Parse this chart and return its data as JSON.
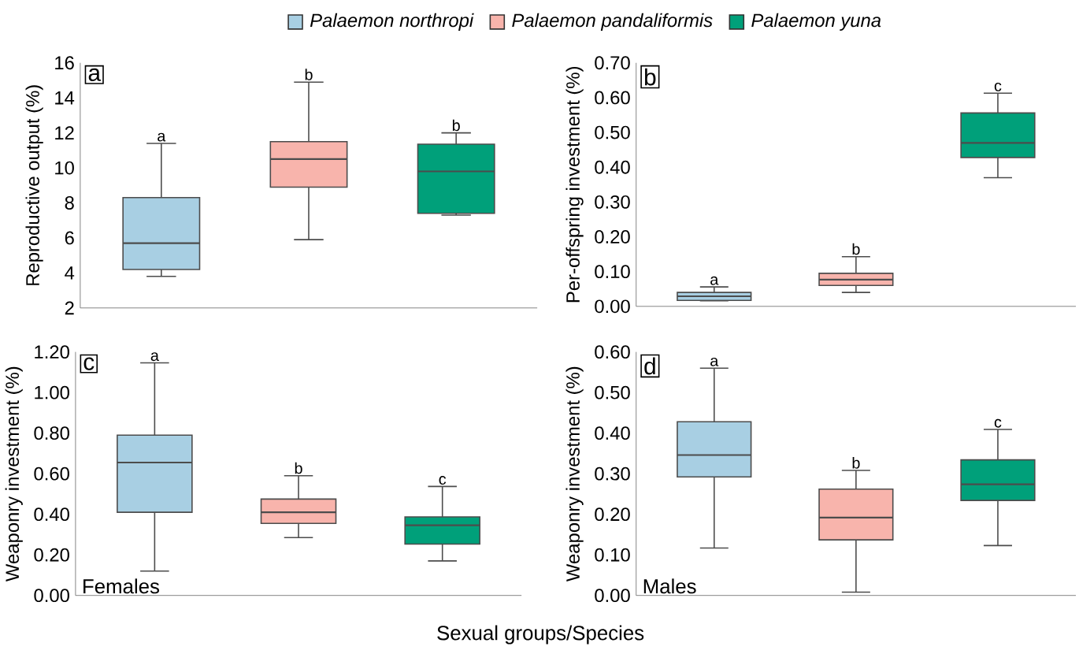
{
  "chart_data": [
    {
      "type": "box",
      "title": "a",
      "ylabel": "Reproductive output (%)",
      "categories": [
        null,
        null,
        null
      ],
      "ylim": [
        2,
        16
      ],
      "yticks": [
        2,
        4,
        6,
        8,
        10,
        12,
        14,
        16
      ],
      "legend": "top",
      "series": [
        {
          "name": "Palaemon northropi",
          "color": "#a8cfe3",
          "boxes": [
            {
              "low": 3.8,
              "q1": 4.2,
              "median": 5.7,
              "q3": 8.3,
              "high": 11.4
            },
            null,
            null
          ]
        },
        {
          "name": "Palaemon pandaliformis",
          "color": "#f8b4ac",
          "boxes": [
            null,
            {
              "low": 5.9,
              "q1": 8.9,
              "median": 10.5,
              "q3": 11.5,
              "high": 14.9
            },
            null
          ]
        },
        {
          "name": "Palaemon yuna",
          "color": "#00a07a",
          "boxes": [
            null,
            null,
            {
              "low": 7.3,
              "q1": 7.4,
              "median": 9.8,
              "q3": 11.35,
              "high": 12.0
            }
          ]
        }
      ],
      "annotations": [
        "a",
        "b",
        "b"
      ]
    },
    {
      "type": "box",
      "title": "b",
      "ylabel": "Per-offspring investment (%)",
      "categories": [
        null,
        null,
        null
      ],
      "ylim": [
        0,
        0.7
      ],
      "yticks": [
        {
          "value": 0,
          "label": "0.00"
        },
        {
          "value": 0.1,
          "label": "0.10"
        },
        {
          "value": 0.2,
          "label": "0.20"
        },
        {
          "value": 0.3,
          "label": "0.30"
        },
        {
          "value": 0.4,
          "label": "0.40"
        },
        {
          "value": 0.5,
          "label": "0.50"
        },
        {
          "value": 0.6,
          "label": "0.60"
        },
        {
          "value": 0.7,
          "label": "0.70"
        }
      ],
      "series": [
        {
          "color": "#a8cfe3",
          "boxes": [
            {
              "low": 0.016,
              "q1": 0.017,
              "median": 0.029,
              "q3": 0.04,
              "high": 0.056
            },
            null,
            null
          ]
        },
        {
          "color": "#f8b4ac",
          "boxes": [
            null,
            {
              "low": 0.04,
              "q1": 0.06,
              "median": 0.077,
              "q3": 0.095,
              "high": 0.143
            },
            null
          ]
        },
        {
          "color": "#00a07a",
          "boxes": [
            null,
            null,
            {
              "low": 0.37,
              "q1": 0.428,
              "median": 0.47,
              "q3": 0.556,
              "high": 0.613
            }
          ]
        }
      ],
      "annotations": [
        "a",
        "b",
        "c"
      ]
    },
    {
      "type": "box",
      "title": "c",
      "ylabel": "Weaponry investment (%)",
      "xlabel": "Sexual groups/Species",
      "categories": [
        null,
        null,
        null
      ],
      "ylim": [
        0,
        1.2
      ],
      "yticks": [
        {
          "value": 0,
          "label": "0.00"
        },
        {
          "value": 0.2,
          "label": "0.20"
        },
        {
          "value": 0.4,
          "label": "0.40"
        },
        {
          "value": 0.6,
          "label": "0.60"
        },
        {
          "value": 0.8,
          "label": "0.80"
        },
        {
          "value": 1.0,
          "label": "1.00"
        },
        {
          "value": 1.2,
          "label": "1.20"
        }
      ],
      "series": [
        {
          "color": "#a8cfe3",
          "boxes": [
            {
              "low": 0.12,
              "q1": 0.41,
              "median": 0.655,
              "q3": 0.79,
              "high": 1.146
            },
            null,
            null
          ]
        },
        {
          "color": "#f8b4ac",
          "boxes": [
            null,
            {
              "low": 0.285,
              "q1": 0.355,
              "median": 0.41,
              "q3": 0.475,
              "high": 0.59
            },
            null
          ]
        },
        {
          "color": "#00a07a",
          "boxes": [
            null,
            null,
            {
              "low": 0.17,
              "q1": 0.253,
              "median": 0.346,
              "q3": 0.387,
              "high": 0.537
            }
          ]
        }
      ],
      "annotations": [
        "a",
        "b",
        "c",
        "Females"
      ]
    },
    {
      "type": "box",
      "title": "d",
      "ylabel": "Weaponry investment (%)",
      "categories": [
        null,
        null,
        null
      ],
      "ylim": [
        0,
        0.6
      ],
      "yticks": [
        {
          "value": 0,
          "label": "0.00"
        },
        {
          "value": 0.1,
          "label": "0.10"
        },
        {
          "value": 0.2,
          "label": "0.20"
        },
        {
          "value": 0.3,
          "label": "0.30"
        },
        {
          "value": 0.4,
          "label": "0.40"
        },
        {
          "value": 0.5,
          "label": "0.50"
        },
        {
          "value": 0.6,
          "label": "0.60"
        }
      ],
      "series": [
        {
          "color": "#a8cfe3",
          "boxes": [
            {
              "low": 0.117,
              "q1": 0.292,
              "median": 0.346,
              "q3": 0.428,
              "high": 0.56
            },
            null,
            null
          ]
        },
        {
          "color": "#f8b4ac",
          "boxes": [
            null,
            {
              "low": 0.008,
              "q1": 0.137,
              "median": 0.192,
              "q3": 0.262,
              "high": 0.308
            },
            null
          ]
        },
        {
          "color": "#00a07a",
          "boxes": [
            null,
            null,
            {
              "low": 0.123,
              "q1": 0.234,
              "median": 0.274,
              "q3": 0.334,
              "high": 0.409
            }
          ]
        }
      ],
      "annotations": [
        "a",
        "b",
        "c",
        "Males"
      ]
    }
  ]
}
